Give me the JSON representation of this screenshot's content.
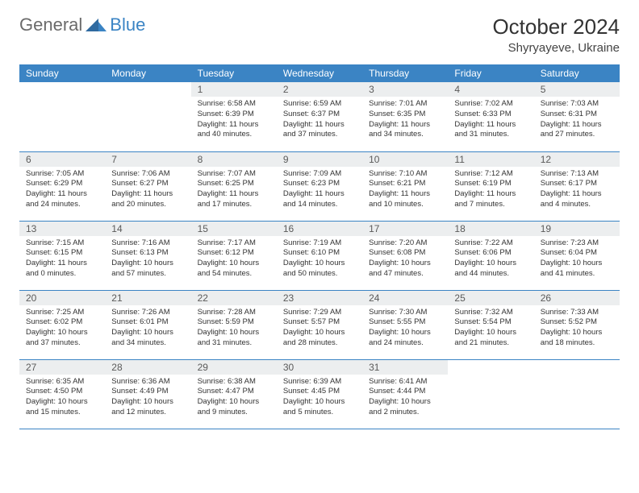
{
  "logo": {
    "text_general": "General",
    "text_blue": "Blue"
  },
  "header": {
    "month_year": "October 2024",
    "location": "Shyryayeve, Ukraine"
  },
  "colors": {
    "header_bg": "#3b84c4",
    "daynum_bg": "#eceeef",
    "border": "#3b84c4",
    "text": "#333333"
  },
  "weekdays": [
    "Sunday",
    "Monday",
    "Tuesday",
    "Wednesday",
    "Thursday",
    "Friday",
    "Saturday"
  ],
  "weeks": [
    [
      null,
      null,
      {
        "n": "1",
        "sr": "6:58 AM",
        "ss": "6:39 PM",
        "dl": "11 hours and 40 minutes."
      },
      {
        "n": "2",
        "sr": "6:59 AM",
        "ss": "6:37 PM",
        "dl": "11 hours and 37 minutes."
      },
      {
        "n": "3",
        "sr": "7:01 AM",
        "ss": "6:35 PM",
        "dl": "11 hours and 34 minutes."
      },
      {
        "n": "4",
        "sr": "7:02 AM",
        "ss": "6:33 PM",
        "dl": "11 hours and 31 minutes."
      },
      {
        "n": "5",
        "sr": "7:03 AM",
        "ss": "6:31 PM",
        "dl": "11 hours and 27 minutes."
      }
    ],
    [
      {
        "n": "6",
        "sr": "7:05 AM",
        "ss": "6:29 PM",
        "dl": "11 hours and 24 minutes."
      },
      {
        "n": "7",
        "sr": "7:06 AM",
        "ss": "6:27 PM",
        "dl": "11 hours and 20 minutes."
      },
      {
        "n": "8",
        "sr": "7:07 AM",
        "ss": "6:25 PM",
        "dl": "11 hours and 17 minutes."
      },
      {
        "n": "9",
        "sr": "7:09 AM",
        "ss": "6:23 PM",
        "dl": "11 hours and 14 minutes."
      },
      {
        "n": "10",
        "sr": "7:10 AM",
        "ss": "6:21 PM",
        "dl": "11 hours and 10 minutes."
      },
      {
        "n": "11",
        "sr": "7:12 AM",
        "ss": "6:19 PM",
        "dl": "11 hours and 7 minutes."
      },
      {
        "n": "12",
        "sr": "7:13 AM",
        "ss": "6:17 PM",
        "dl": "11 hours and 4 minutes."
      }
    ],
    [
      {
        "n": "13",
        "sr": "7:15 AM",
        "ss": "6:15 PM",
        "dl": "11 hours and 0 minutes."
      },
      {
        "n": "14",
        "sr": "7:16 AM",
        "ss": "6:13 PM",
        "dl": "10 hours and 57 minutes."
      },
      {
        "n": "15",
        "sr": "7:17 AM",
        "ss": "6:12 PM",
        "dl": "10 hours and 54 minutes."
      },
      {
        "n": "16",
        "sr": "7:19 AM",
        "ss": "6:10 PM",
        "dl": "10 hours and 50 minutes."
      },
      {
        "n": "17",
        "sr": "7:20 AM",
        "ss": "6:08 PM",
        "dl": "10 hours and 47 minutes."
      },
      {
        "n": "18",
        "sr": "7:22 AM",
        "ss": "6:06 PM",
        "dl": "10 hours and 44 minutes."
      },
      {
        "n": "19",
        "sr": "7:23 AM",
        "ss": "6:04 PM",
        "dl": "10 hours and 41 minutes."
      }
    ],
    [
      {
        "n": "20",
        "sr": "7:25 AM",
        "ss": "6:02 PM",
        "dl": "10 hours and 37 minutes."
      },
      {
        "n": "21",
        "sr": "7:26 AM",
        "ss": "6:01 PM",
        "dl": "10 hours and 34 minutes."
      },
      {
        "n": "22",
        "sr": "7:28 AM",
        "ss": "5:59 PM",
        "dl": "10 hours and 31 minutes."
      },
      {
        "n": "23",
        "sr": "7:29 AM",
        "ss": "5:57 PM",
        "dl": "10 hours and 28 minutes."
      },
      {
        "n": "24",
        "sr": "7:30 AM",
        "ss": "5:55 PM",
        "dl": "10 hours and 24 minutes."
      },
      {
        "n": "25",
        "sr": "7:32 AM",
        "ss": "5:54 PM",
        "dl": "10 hours and 21 minutes."
      },
      {
        "n": "26",
        "sr": "7:33 AM",
        "ss": "5:52 PM",
        "dl": "10 hours and 18 minutes."
      }
    ],
    [
      {
        "n": "27",
        "sr": "6:35 AM",
        "ss": "4:50 PM",
        "dl": "10 hours and 15 minutes."
      },
      {
        "n": "28",
        "sr": "6:36 AM",
        "ss": "4:49 PM",
        "dl": "10 hours and 12 minutes."
      },
      {
        "n": "29",
        "sr": "6:38 AM",
        "ss": "4:47 PM",
        "dl": "10 hours and 9 minutes."
      },
      {
        "n": "30",
        "sr": "6:39 AM",
        "ss": "4:45 PM",
        "dl": "10 hours and 5 minutes."
      },
      {
        "n": "31",
        "sr": "6:41 AM",
        "ss": "4:44 PM",
        "dl": "10 hours and 2 minutes."
      },
      null,
      null
    ]
  ],
  "labels": {
    "sunrise": "Sunrise:",
    "sunset": "Sunset:",
    "daylight": "Daylight:"
  }
}
